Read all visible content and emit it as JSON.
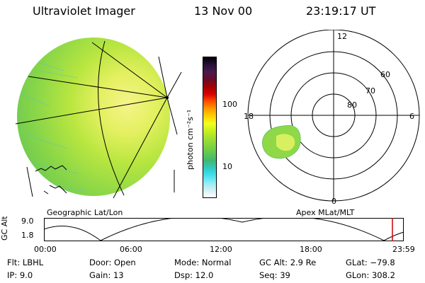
{
  "header": {
    "title": "Ultraviolet Imager",
    "date": "13 Nov 00",
    "time": "23:19:17 UT"
  },
  "colorbar": {
    "label": "photon cm⁻²s⁻¹",
    "ticks": [
      "100",
      "10"
    ],
    "colors": [
      "#000000",
      "#28123c",
      "#4a1a4a",
      "#6a0a2a",
      "#a40000",
      "#d80000",
      "#ff5000",
      "#ff9a00",
      "#ffd200",
      "#f0ff20",
      "#c8f020",
      "#a0e030",
      "#80d440",
      "#60c850",
      "#40b870",
      "#30c8c0",
      "#40e0f0",
      "#90ecf4",
      "#d0f0f4",
      "#ffffff"
    ]
  },
  "panels": {
    "left_label": "Geographic Lat/Lon",
    "right_label": "Apex MLat/MLT"
  },
  "polar": {
    "mlt_labels": [
      "12",
      "18",
      "6",
      "0"
    ],
    "lat_labels": [
      "60",
      "70",
      "80"
    ]
  },
  "orbit": {
    "ylabel": "GC Alt",
    "yticks": [
      "9.0",
      "1.8"
    ],
    "xticks": [
      "00:00",
      "06:00",
      "12:00",
      "18:00",
      "23:59"
    ],
    "marker_color": "#cc0000"
  },
  "info": {
    "flt": "Flt: LBHL",
    "ip": "IP:  9.0",
    "door": "Door: Open",
    "gain": "Gain: 13",
    "mode": "Mode: Normal",
    "dsp": "Dsp:     12.0",
    "gcalt": "GC Alt: 2.9 Re",
    "seq": "Seq: 39",
    "glat": "GLat: −79.8",
    "glon": "GLon: 308.2"
  }
}
